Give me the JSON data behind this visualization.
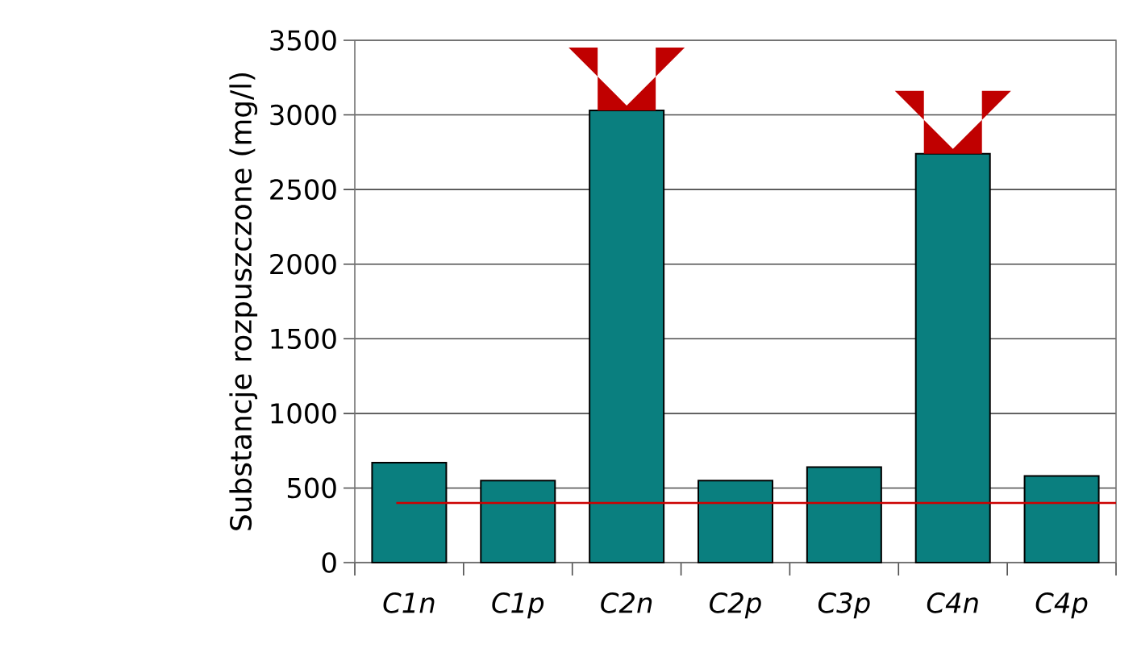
{
  "chart_data": {
    "type": "bar",
    "ylabel": "Substancje rozpuszczone (mg/l)",
    "categories": [
      "C1n",
      "C1p",
      "C2n",
      "C2p",
      "C3p",
      "C4n",
      "C4p"
    ],
    "values": [
      670,
      550,
      3030,
      550,
      640,
      2740,
      580
    ],
    "color": "#0a7f7f",
    "ylim": [
      0,
      3500
    ],
    "yticks": [
      0,
      500,
      1000,
      1500,
      2000,
      2500,
      3000,
      3500
    ],
    "grid": "y",
    "ref_lines": [
      {
        "axis": "y",
        "value": 400,
        "color": "#cc0000"
      }
    ]
  }
}
